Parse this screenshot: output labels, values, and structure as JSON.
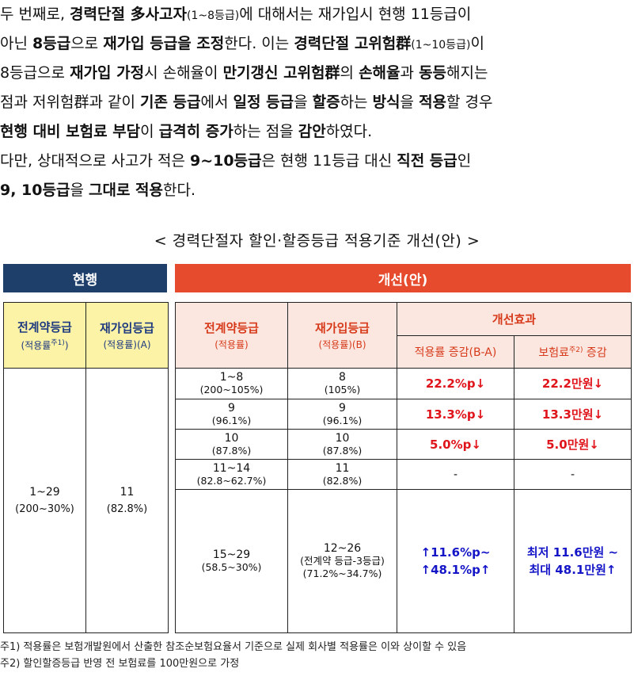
{
  "paragraph1": {
    "lines": [
      [
        {
          "t": "  두 번째로, ",
          "b": false
        },
        {
          "t": "경력단절 多사고자",
          "b": true
        },
        {
          "t": "(1~8등급)",
          "b": false,
          "s": true
        },
        {
          "t": "에 대해서는 재가입시 현행 11등급이",
          "b": false
        }
      ],
      [
        {
          "t": "아닌 ",
          "b": false
        },
        {
          "t": "8등급",
          "b": true
        },
        {
          "t": "으로 ",
          "b": false
        },
        {
          "t": "재가입 등급을 조정",
          "b": true
        },
        {
          "t": "한다. 이는 ",
          "b": false
        },
        {
          "t": "경력단절 고위험群",
          "b": true
        },
        {
          "t": "(1~10등급)",
          "b": false,
          "s": true
        },
        {
          "t": "이",
          "b": false
        }
      ],
      [
        {
          "t": "8등급으로 ",
          "b": false
        },
        {
          "t": "재가입 가정",
          "b": true
        },
        {
          "t": "시 손해율이 ",
          "b": false
        },
        {
          "t": "만기갱신 고위험群",
          "b": true
        },
        {
          "t": "의 ",
          "b": false
        },
        {
          "t": "손해율",
          "b": true
        },
        {
          "t": "과 ",
          "b": false
        },
        {
          "t": "동등",
          "b": true
        },
        {
          "t": "해지는",
          "b": false
        }
      ],
      [
        {
          "t": "점과 저위험群과 같이 ",
          "b": false
        },
        {
          "t": "기존 등급",
          "b": true
        },
        {
          "t": "에서 ",
          "b": false
        },
        {
          "t": "일정 등급",
          "b": true
        },
        {
          "t": "을 ",
          "b": false
        },
        {
          "t": "할증",
          "b": true
        },
        {
          "t": "하는 ",
          "b": false
        },
        {
          "t": "방식",
          "b": true
        },
        {
          "t": "을 ",
          "b": false
        },
        {
          "t": "적용",
          "b": true
        },
        {
          "t": "할 경우",
          "b": false
        }
      ],
      [
        {
          "t": "현행 대비 보험료 부담",
          "b": true
        },
        {
          "t": "이 ",
          "b": false
        },
        {
          "t": "급격히 증가",
          "b": true
        },
        {
          "t": "하는 점을 ",
          "b": false
        },
        {
          "t": "감안",
          "b": true
        },
        {
          "t": "하였다.",
          "b": false
        }
      ]
    ]
  },
  "paragraph2": {
    "lines": [
      [
        {
          "t": "  다만, 상대적으로 사고가 적은 ",
          "b": false
        },
        {
          "t": "9~10등급",
          "b": true
        },
        {
          "t": "은 현행 11등급 대신 ",
          "b": false
        },
        {
          "t": "직전 등급",
          "b": true
        },
        {
          "t": "인",
          "b": false
        }
      ],
      [
        {
          "t": "9, 10등급",
          "b": true
        },
        {
          "t": "을 ",
          "b": false
        },
        {
          "t": "그대로 적용",
          "b": true
        },
        {
          "t": "한다.",
          "b": false
        }
      ]
    ]
  },
  "table_title": "< 경력단절자 할인·할증등급 적용기준 개선(안) >",
  "banner_current": "현행",
  "banner_new": "개선(안)",
  "current": {
    "h1_title": "전계약등급",
    "h1_sub_a": "(적용률",
    "h1_sup": "주1)",
    "h1_sub_b": ")",
    "h2_title": "재가입등급",
    "h2_sub": "(적용률)(A)",
    "prev_grade": "1~29",
    "prev_rate": "(200~30%)",
    "re_grade": "11",
    "re_rate": "(82.8%)"
  },
  "new": {
    "h_prev_title": "전계약등급",
    "h_prev_sub": "(적용률)",
    "h_re_title": "재가입등급",
    "h_re_sub": "(적용률)(B)",
    "h_effect": "개선효과",
    "h_rate_change": "적용률 증감(B-A)",
    "h_prem_a": "보험료",
    "h_prem_sup": "주2)",
    "h_prem_b": " 증감",
    "rows": [
      {
        "prev": "1~8",
        "prev_r": "(200~105%)",
        "re": "8",
        "re_r": "(105%)",
        "rate": "22.2%p↓",
        "prem": "22.2만원↓"
      },
      {
        "prev": "9",
        "prev_r": "(96.1%)",
        "re": "9",
        "re_r": "(96.1%)",
        "rate": "13.3%p↓",
        "prem": "13.3만원↓"
      },
      {
        "prev": "10",
        "prev_r": "(87.8%)",
        "re": "10",
        "re_r": "(87.8%)",
        "rate": "5.0%p↓",
        "prem": "5.0만원↓"
      },
      {
        "prev": "11~14",
        "prev_r": "(82.8~62.7%)",
        "re": "11",
        "re_r": "(82.8%)",
        "rate": "-",
        "prem": "-"
      },
      {
        "prev": "15~29",
        "prev_r": "(58.5~30%)",
        "re": "12~26",
        "re_note": "(전계약 등급-3등급)",
        "re_r": "(71.2%~34.7%)",
        "rate_a": "↑11.6%p~",
        "rate_b": "↑48.1%p↑",
        "prem_a": "최저 11.6만원 ~",
        "prem_b": "최대 48.1만원↑"
      }
    ]
  },
  "footnote1": "주1) 적용률은 보험개발원에서 산출한 참조순보험요율서 기준으로 실제 회사별 적용률은 이와 상이할 수 있음",
  "footnote2": "주2) 할인할증등급 반영 전 보험료를 100만원으로 가정"
}
